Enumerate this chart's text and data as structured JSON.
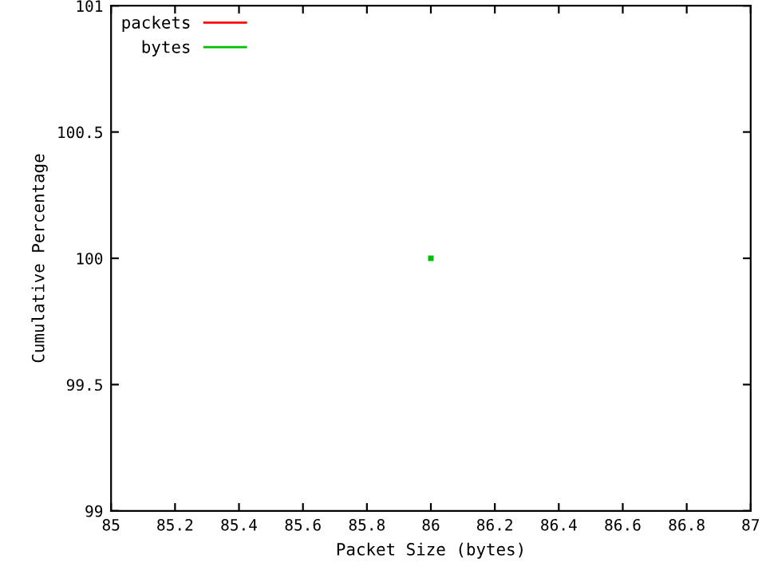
{
  "chart_data": {
    "type": "line",
    "xlabel": "Packet Size (bytes)",
    "ylabel": "Cumulative Percentage",
    "xlim": [
      85,
      87
    ],
    "xticks": [
      85,
      85.2,
      85.4,
      85.6,
      85.8,
      86,
      86.2,
      86.4,
      86.6,
      86.8,
      87
    ],
    "ylim": [
      99,
      101
    ],
    "yticks": [
      99,
      99.5,
      100,
      100.5,
      101
    ],
    "legend": "top left",
    "marker": "square",
    "x": [
      86
    ],
    "series": [
      {
        "name": "packets",
        "color": "#ff0000",
        "values": [
          null
        ]
      },
      {
        "name": "bytes",
        "color": "#00c000",
        "values": [
          100
        ]
      }
    ]
  }
}
